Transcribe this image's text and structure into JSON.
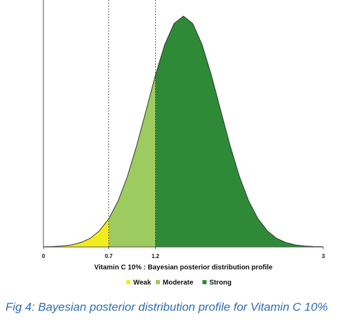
{
  "chart_data": {
    "type": "density",
    "x_label": "Vitamin C 10% : Bayesian posterior distribution profile",
    "caption": "Fig 4: Bayesian posterior distribution profile for Vitamin C 10%",
    "x": [
      0,
      0.1,
      0.2,
      0.3,
      0.4,
      0.5,
      0.6,
      0.7,
      0.8,
      0.9,
      1.0,
      1.1,
      1.2,
      1.3,
      1.4,
      1.5,
      1.6,
      1.7,
      1.8,
      1.9,
      2.0,
      2.1,
      2.2,
      2.3,
      2.4,
      2.5,
      2.6,
      2.7,
      2.8,
      2.9,
      3.0
    ],
    "values": [
      0.001,
      0.002,
      0.004,
      0.009,
      0.019,
      0.037,
      0.07,
      0.122,
      0.199,
      0.306,
      0.44,
      0.591,
      0.744,
      0.877,
      0.968,
      1.0,
      0.968,
      0.877,
      0.744,
      0.591,
      0.44,
      0.306,
      0.199,
      0.122,
      0.07,
      0.037,
      0.019,
      0.009,
      0.004,
      0.002,
      0.001
    ],
    "regions": [
      {
        "name": "Weak",
        "color": "#f2ec1c",
        "range": [
          0,
          0.7
        ]
      },
      {
        "name": "Moderate",
        "color": "#9dcb5f",
        "range": [
          0.7,
          1.2
        ]
      },
      {
        "name": "Strong",
        "color": "#2f8a37",
        "range": [
          1.2,
          3
        ]
      }
    ],
    "xlim": [
      0,
      3
    ],
    "xticks": [
      0,
      0.7,
      1.2,
      3
    ],
    "ylim": [
      0,
      1.07
    ]
  }
}
